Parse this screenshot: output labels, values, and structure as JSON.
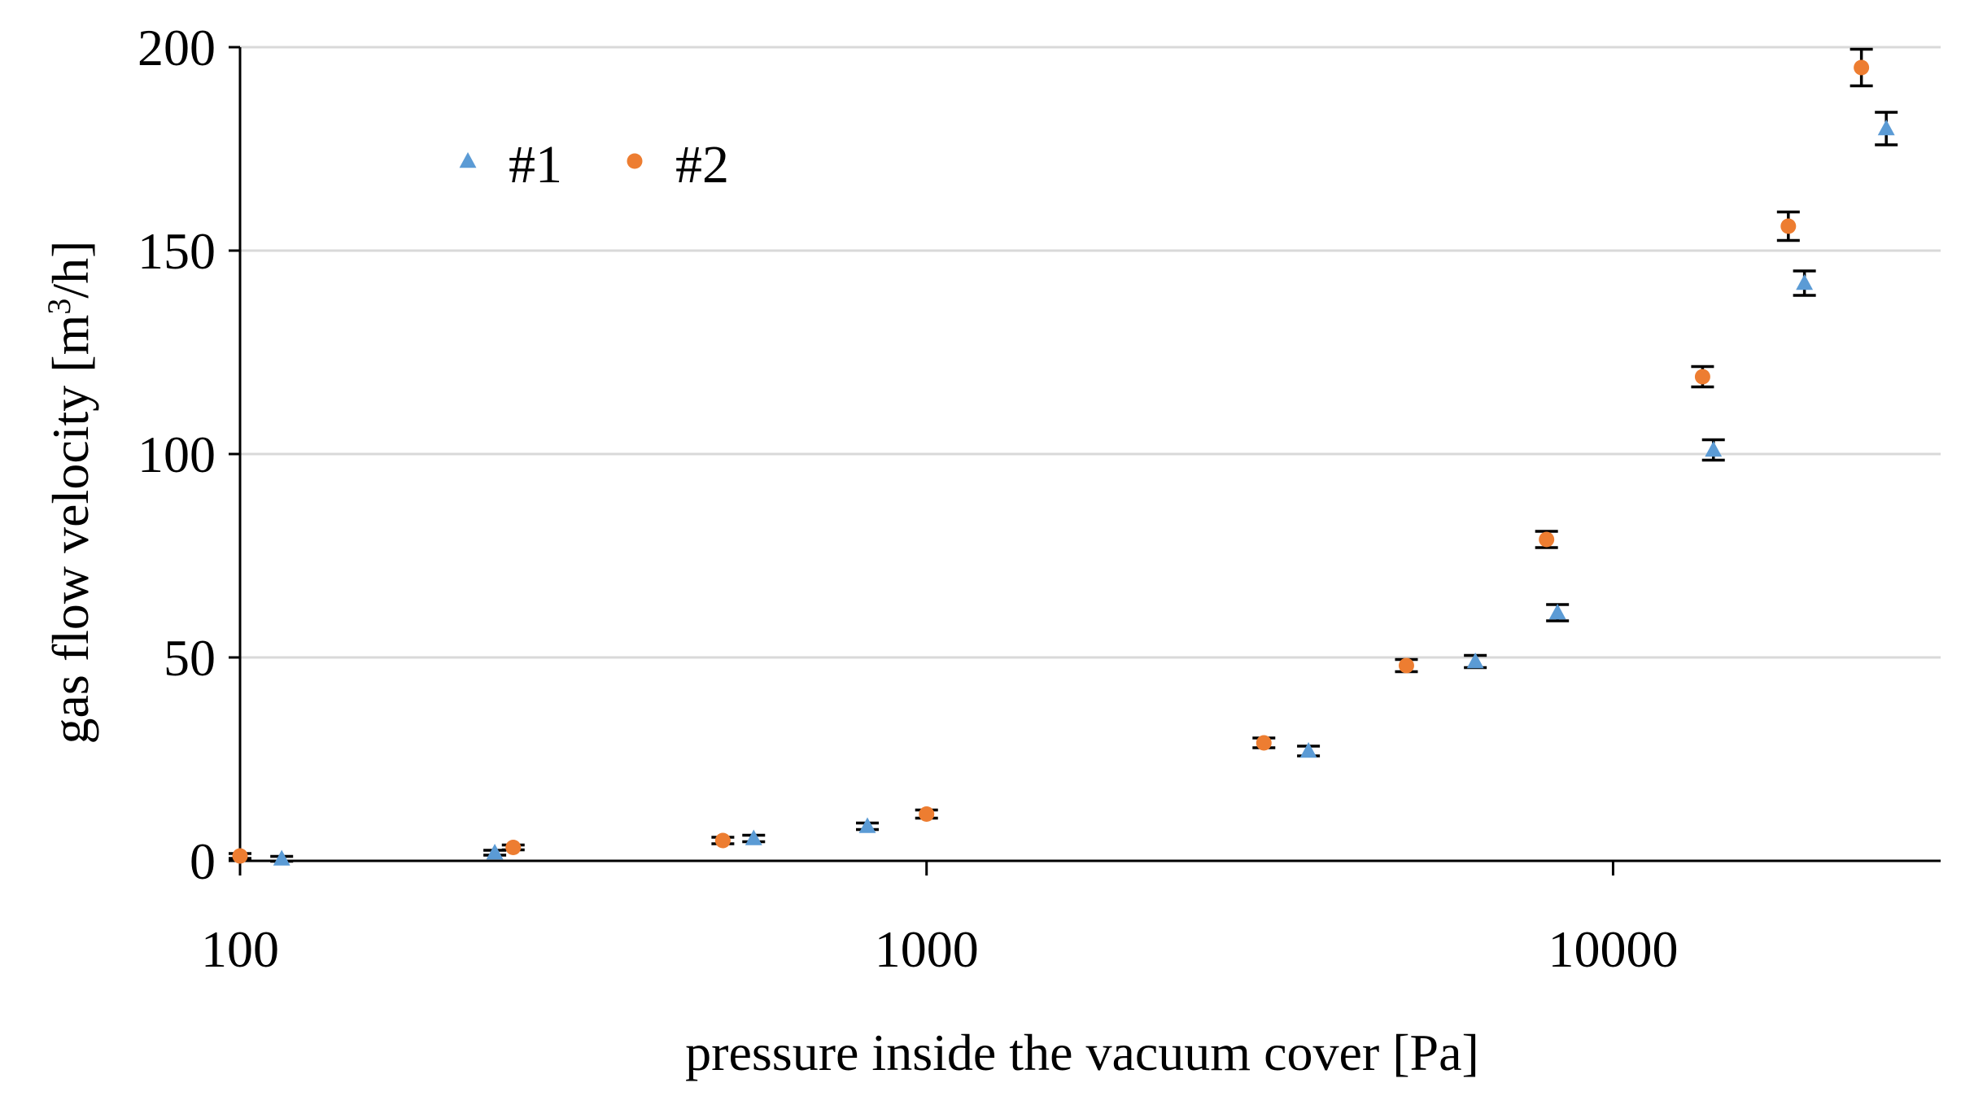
{
  "chart_data": {
    "type": "scatter",
    "title": "",
    "xlabel": "pressure inside the vacuum cover  [Pa]",
    "ylabel_main": "gas flow velocity  [m",
    "ylabel_sup": "3",
    "ylabel_end": "/h]",
    "x_scale": "log",
    "xlim": [
      100,
      30000
    ],
    "ylim": [
      0,
      200
    ],
    "x_ticks": [
      100,
      1000,
      10000
    ],
    "x_tick_labels": [
      "100",
      "1000",
      "10000"
    ],
    "y_ticks": [
      0,
      50,
      100,
      150,
      200
    ],
    "y_tick_labels": [
      "0",
      "50",
      "100",
      "150",
      "200"
    ],
    "grid": "horizontal",
    "legend_position": "top-left",
    "error_bars": true,
    "series": [
      {
        "name": "#1",
        "marker": "triangle",
        "color": "#5b9bd5",
        "x": [
          115,
          235,
          560,
          820,
          3600,
          6300,
          8300,
          14000,
          19000,
          25000
        ],
        "y": [
          0.5,
          2,
          5.5,
          8.5,
          27,
          49,
          61,
          101,
          142,
          180
        ],
        "y_err": [
          0.6,
          0.6,
          0.8,
          0.8,
          1.2,
          1.5,
          2,
          2.5,
          3,
          4
        ]
      },
      {
        "name": "#2",
        "marker": "circle",
        "color": "#ed7d31",
        "x": [
          100,
          250,
          505,
          1000,
          3100,
          5000,
          8000,
          13500,
          18000,
          23000
        ],
        "y": [
          1.2,
          3.3,
          5,
          11.5,
          29,
          48,
          79,
          119,
          156,
          195
        ],
        "y_err": [
          0.6,
          0.6,
          0.8,
          1,
          1.2,
          1.5,
          2,
          2.5,
          3.5,
          4.5
        ]
      }
    ]
  }
}
